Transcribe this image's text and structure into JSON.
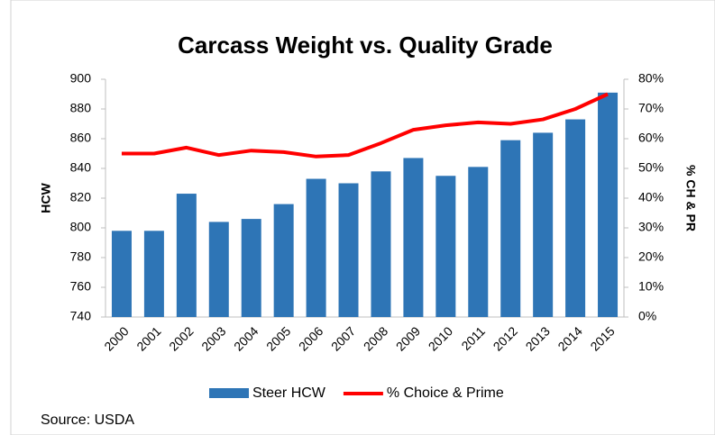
{
  "chart_data": {
    "type": "bar_line",
    "title": "Carcass Weight vs. Quality Grade",
    "ylabel": "HCW",
    "y2label": "% CH & PR",
    "source": "Source: USDA",
    "categories": [
      "2000",
      "2001",
      "2002",
      "2003",
      "2004",
      "2005",
      "2006",
      "2007",
      "2008",
      "2009",
      "2010",
      "2011",
      "2012",
      "2013",
      "2014",
      "2015"
    ],
    "series": [
      {
        "name": "Steer HCW",
        "type": "bar",
        "color": "#2e75b6",
        "values": [
          798,
          798,
          823,
          804,
          806,
          816,
          833,
          830,
          838,
          847,
          835,
          841,
          859,
          864,
          873,
          891
        ]
      },
      {
        "name": "% Choice & Prime",
        "type": "line",
        "color": "#ff0000",
        "axis": "y2",
        "values": [
          55,
          55,
          57,
          54.5,
          56,
          55.5,
          54,
          54.5,
          58.5,
          63,
          64.5,
          65.5,
          65,
          66.5,
          70,
          75
        ]
      }
    ],
    "ylim": [
      740,
      900
    ],
    "yticks": [
      740,
      760,
      780,
      800,
      820,
      840,
      860,
      880,
      900
    ],
    "y2lim": [
      0,
      80
    ],
    "y2ticks": [
      {
        "value": 0,
        "label": "0%"
      },
      {
        "value": 10,
        "label": "10%"
      },
      {
        "value": 20,
        "label": "20%"
      },
      {
        "value": 30,
        "label": "30%"
      },
      {
        "value": 40,
        "label": "40%"
      },
      {
        "value": 50,
        "label": "50%"
      },
      {
        "value": 60,
        "label": "60%"
      },
      {
        "value": 70,
        "label": "70%"
      },
      {
        "value": 80,
        "label": "80%"
      }
    ],
    "legend": "bottom"
  }
}
